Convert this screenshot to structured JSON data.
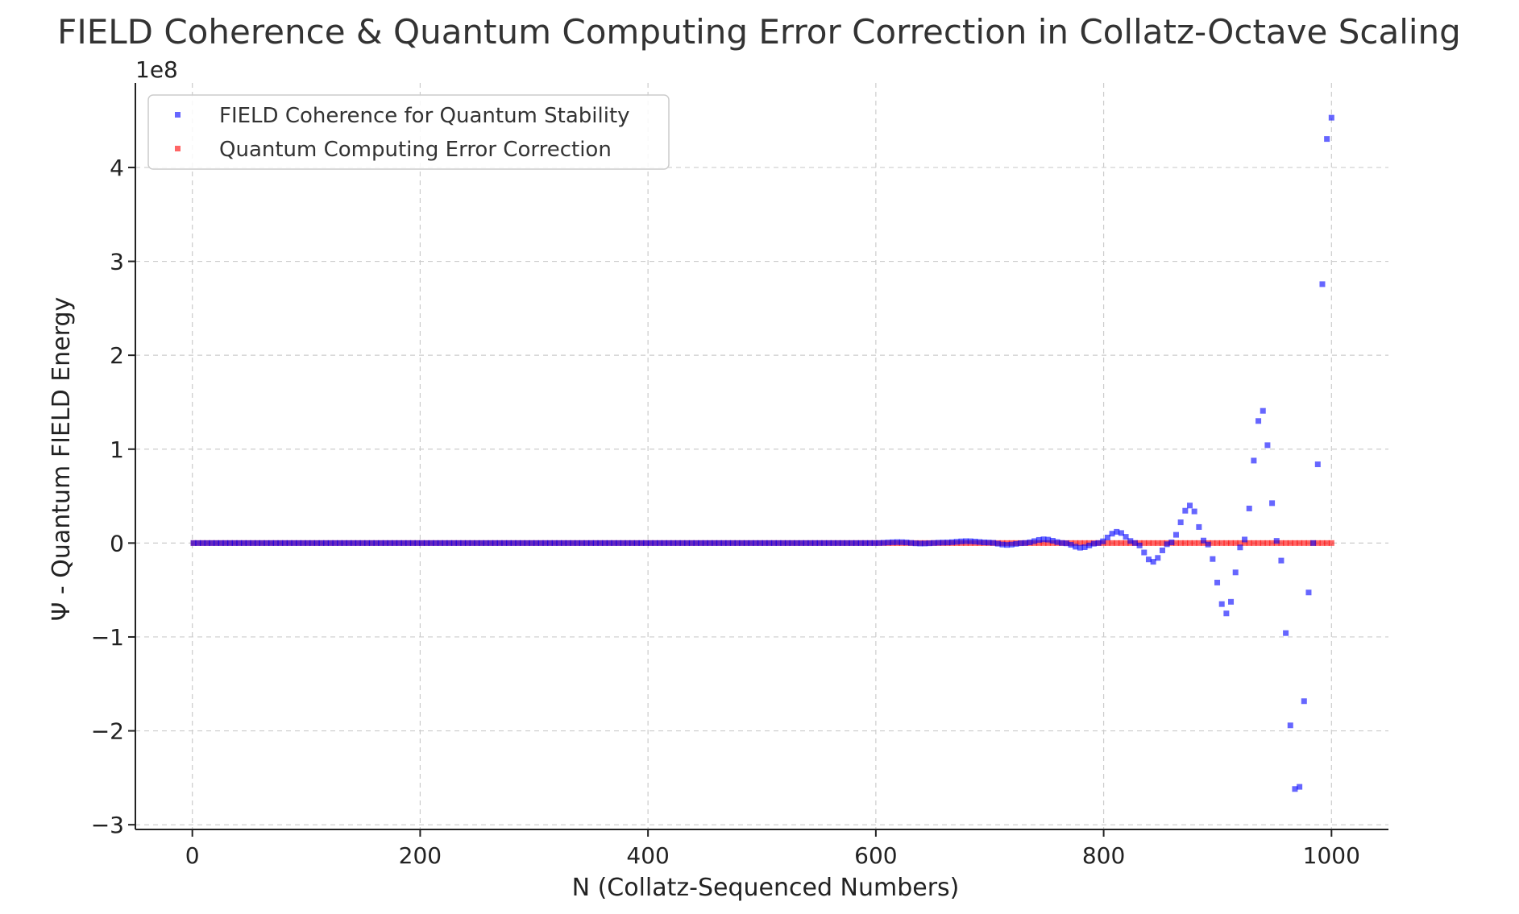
{
  "chart_data": {
    "type": "scatter",
    "title": "FIELD Coherence & Quantum Computing Error Correction in Collatz-Octave Scaling",
    "xlabel": "N (Collatz-Sequenced Numbers)",
    "ylabel": "Ψ - Quantum FIELD Energy",
    "y_scale_label": "1e8",
    "xlim": [
      -50,
      1050
    ],
    "ylim": [
      -3.05,
      4.9
    ],
    "x_ticks": [
      0,
      200,
      400,
      600,
      800,
      1000
    ],
    "x_tick_labels": [
      "0",
      "200",
      "400",
      "600",
      "800",
      "1000"
    ],
    "y_ticks": [
      -3,
      -2,
      -1,
      0,
      1,
      2,
      3,
      4
    ],
    "y_tick_labels": [
      "−3",
      "−2",
      "−1",
      "0",
      "1",
      "2",
      "3",
      "4"
    ],
    "grid": true,
    "legend_position": "top-left",
    "series": [
      {
        "name": "FIELD Coherence for Quantum Stability",
        "color": "#0000ff",
        "x_range": [
          1,
          1000
        ],
        "points": [
          [
            600,
            0.0
          ],
          [
            620,
            0.01
          ],
          [
            640,
            -0.005
          ],
          [
            660,
            0.005
          ],
          [
            680,
            0.02
          ],
          [
            700,
            0.005
          ],
          [
            715,
            -0.02
          ],
          [
            730,
            0.0
          ],
          [
            748,
            0.04
          ],
          [
            765,
            0.0
          ],
          [
            780,
            -0.05
          ],
          [
            795,
            0.0
          ],
          [
            812,
            0.12
          ],
          [
            828,
            0.0
          ],
          [
            843,
            -0.2
          ],
          [
            858,
            0.0
          ],
          [
            876,
            0.4
          ],
          [
            890,
            0.0
          ],
          [
            908,
            -0.75
          ],
          [
            922,
            0.0
          ],
          [
            939,
            1.42
          ],
          [
            953,
            0.0
          ],
          [
            970,
            -2.72
          ],
          [
            984,
            0.0
          ],
          [
            998,
            4.53
          ]
        ]
      },
      {
        "name": "Quantum Computing Error Correction",
        "color": "#ff0000",
        "x_range": [
          1,
          1000
        ],
        "values_constant": 0
      }
    ]
  }
}
